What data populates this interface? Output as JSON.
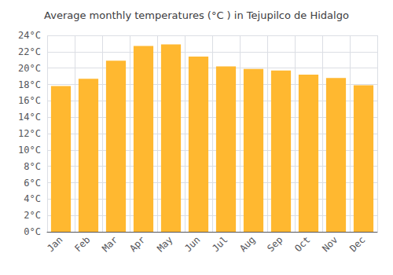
{
  "chart_data": {
    "type": "bar",
    "title": "Average monthly temperatures (°C ) in Tejupilco de Hidalgo",
    "categories": [
      "Jan",
      "Feb",
      "Mar",
      "Apr",
      "May",
      "Jun",
      "Jul",
      "Aug",
      "Sep",
      "Oct",
      "Nov",
      "Dec"
    ],
    "values": [
      17.8,
      18.7,
      20.9,
      22.7,
      22.9,
      21.4,
      20.2,
      19.9,
      19.7,
      19.2,
      18.8,
      17.9
    ],
    "color": "#FFB830",
    "ylim": [
      0,
      24
    ],
    "yticks": [
      {
        "value": 0,
        "label": "0°C"
      },
      {
        "value": 2,
        "label": "2°C"
      },
      {
        "value": 4,
        "label": "4°C"
      },
      {
        "value": 6,
        "label": "6°C"
      },
      {
        "value": 8,
        "label": "8°C"
      },
      {
        "value": 10,
        "label": "10°C"
      },
      {
        "value": 12,
        "label": "12°C"
      },
      {
        "value": 14,
        "label": "14°C"
      },
      {
        "value": 16,
        "label": "16°C"
      },
      {
        "value": 18,
        "label": "18°C"
      },
      {
        "value": 20,
        "label": "20°C"
      },
      {
        "value": 22,
        "label": "22°C"
      },
      {
        "value": 24,
        "label": "24°C"
      }
    ],
    "grid": true
  }
}
